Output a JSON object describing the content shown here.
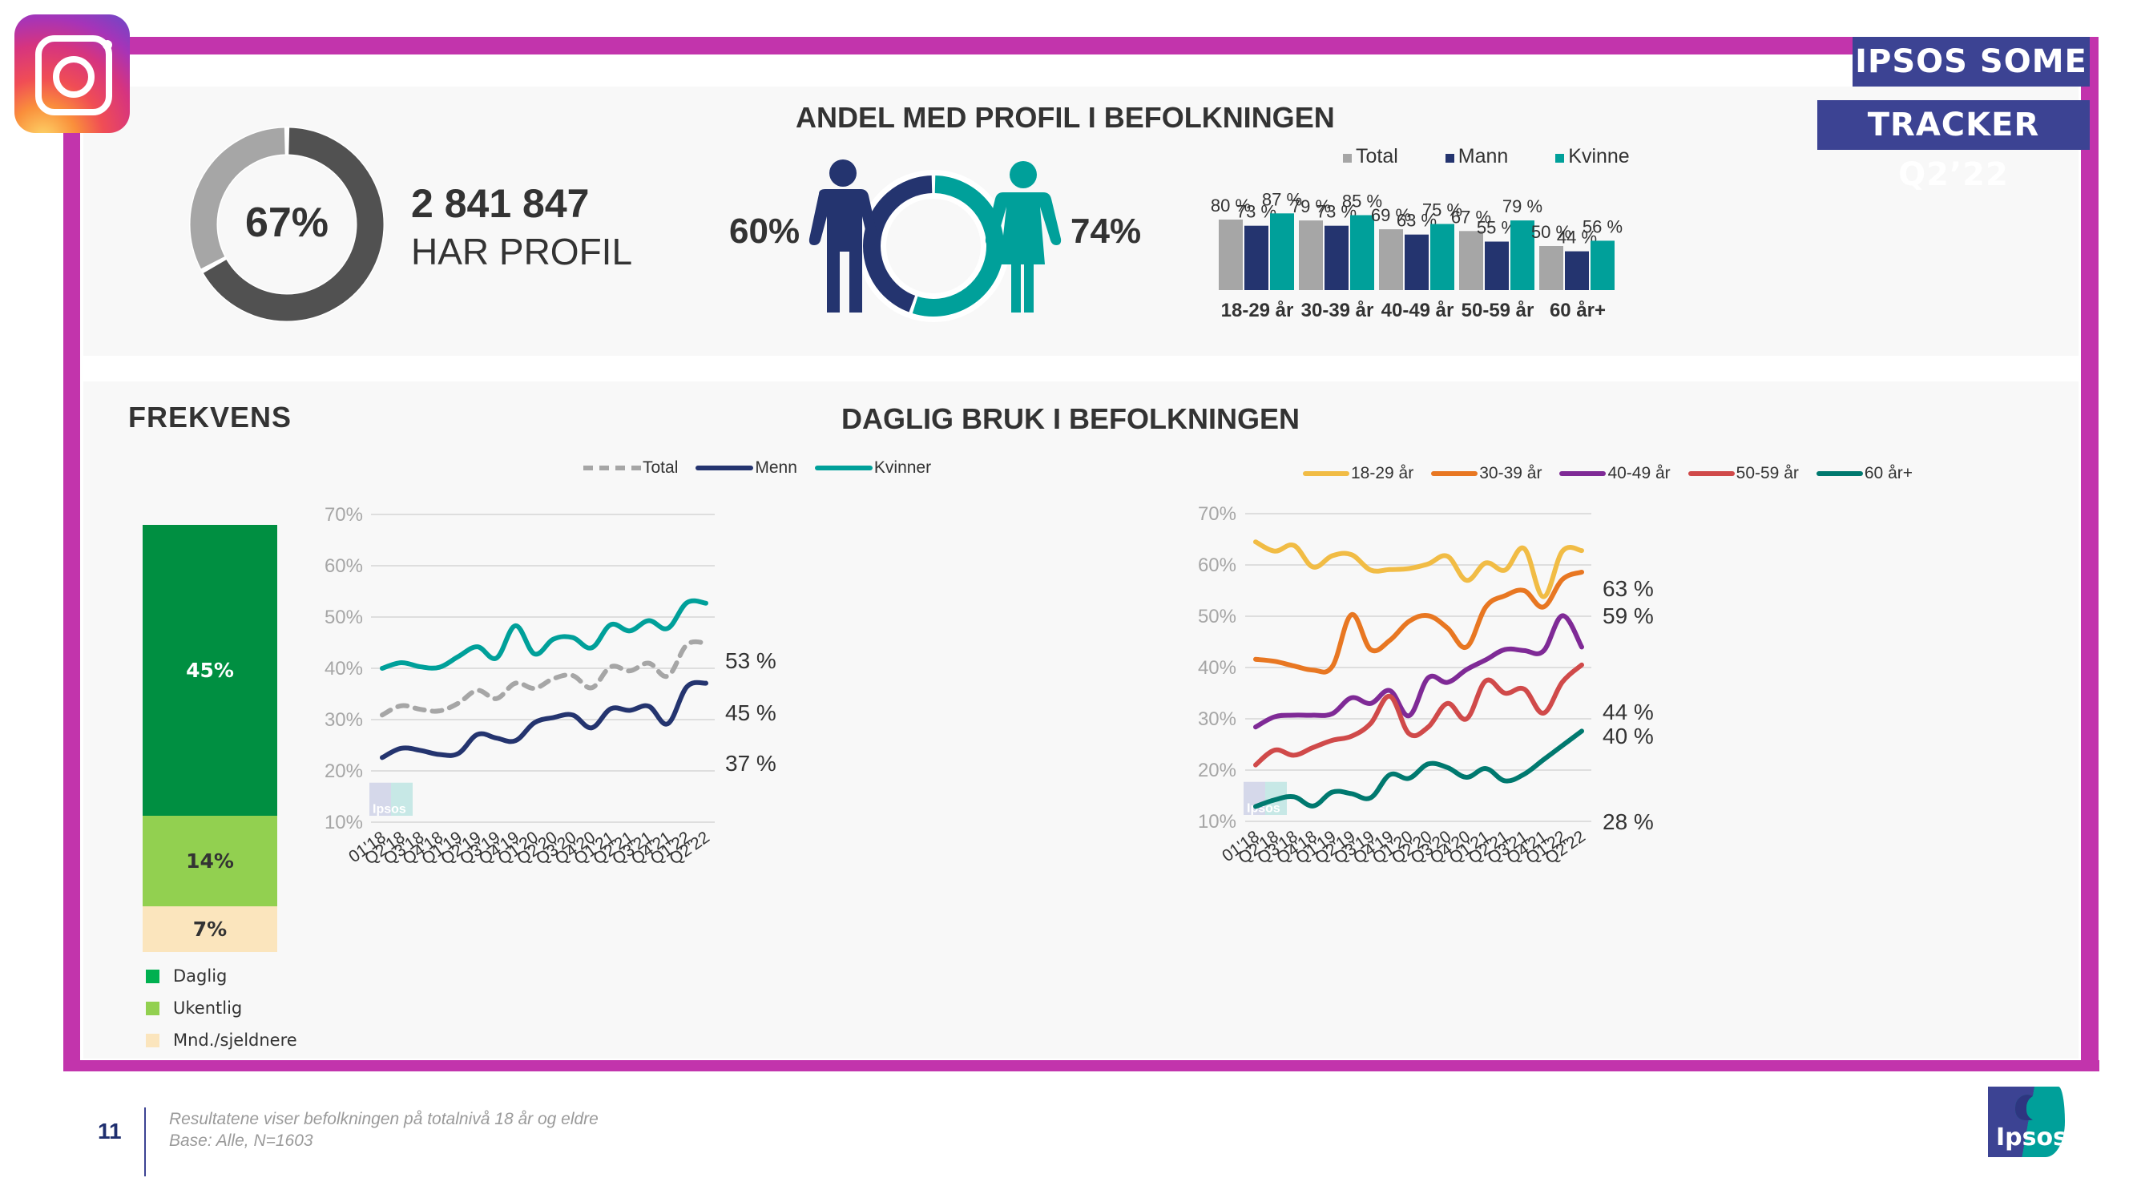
{
  "brand": {
    "badge_line1": "IPSOS SOME",
    "badge_line2": "TRACKER Q2’22",
    "platform_icon": "instagram-icon",
    "logo_text": "Ipsos",
    "colors": {
      "frame": "#c234ac",
      "badge": "#3c4393",
      "men": "#24346f",
      "women": "#00a09a",
      "total": "#a6a6a6"
    }
  },
  "profile": {
    "title": "ANDEL MED PROFIL I BEFOLKNINGEN",
    "donut_pct": 67,
    "donut_label": "67%",
    "count": "2 841 847",
    "count_label": "HAR PROFIL",
    "men_label": "60%",
    "women_label": "74%",
    "men_pct": 60,
    "women_pct": 74
  },
  "frekvens": {
    "title": "FREKVENS",
    "segments": [
      {
        "name": "Daglig",
        "value": 45,
        "label": "45%",
        "color": "#008f41",
        "text_color": "#ffffff"
      },
      {
        "name": "Ukentlig",
        "value": 14,
        "label": "14%",
        "color": "#92d050",
        "text_color": "#333333"
      },
      {
        "name": "Mnd./sjeldnere",
        "value": 7,
        "label": "7%",
        "color": "#fbe5bd",
        "text_color": "#333333"
      }
    ]
  },
  "daglig": {
    "title": "DAGLIG BRUK I BEFOLKNINGEN"
  },
  "footer": {
    "page_number": "11",
    "note_line1": "Resultatene viser befolkningen på totalnivå 18 år og eldre",
    "note_line2": "Base: Alle, N=1603"
  },
  "chart_data": [
    {
      "id": "age-gender-bars",
      "type": "bar",
      "title": "ANDEL MED PROFIL I BEFOLKNINGEN",
      "categories": [
        "18-29 år",
        "30-39 år",
        "40-49 år",
        "50-59 år",
        "60 år+"
      ],
      "series": [
        {
          "name": "Total",
          "color": "#a6a6a6",
          "values": [
            80,
            79,
            69,
            67,
            50
          ],
          "labels": [
            "80 %",
            "79 %",
            "69 %",
            "67 %",
            "50 %"
          ]
        },
        {
          "name": "Mann",
          "color": "#24346f",
          "values": [
            73,
            73,
            63,
            55,
            44
          ],
          "labels": [
            "73 %",
            "73 %",
            "63 %",
            "55 %",
            "44 %"
          ]
        },
        {
          "name": "Kvinne",
          "color": "#00a09a",
          "values": [
            87,
            85,
            75,
            79,
            56
          ],
          "labels": [
            "87 %",
            "85 %",
            "75 %",
            "79 %",
            "56 %"
          ]
        }
      ],
      "legend": "top",
      "ylim": [
        0,
        100
      ]
    },
    {
      "id": "frekvens-stack",
      "type": "bar",
      "title": "FREKVENS",
      "categories": [
        "Daglig",
        "Ukentlig",
        "Mnd./sjeldnere"
      ],
      "values": [
        45,
        14,
        7
      ],
      "stacked": true
    },
    {
      "id": "daily-gender",
      "type": "line",
      "title": "DAGLIG BRUK I BEFOLKNINGEN",
      "x": [
        "01'18",
        "Q2'18",
        "Q3'18",
        "Q4'18",
        "Q1'19",
        "Q2'19",
        "Q3'19",
        "Q4'19",
        "Q1'20",
        "Q2'20",
        "Q3'20",
        "Q4'20",
        "Q1'21",
        "Q2'21",
        "Q3'21",
        "Q4'21",
        "Q1'22",
        "Q2'22"
      ],
      "yticks": [
        "70%",
        "60%",
        "50%",
        "40%",
        "30%",
        "20%",
        "10%"
      ],
      "ylim": [
        10,
        70
      ],
      "grid": true,
      "legend": "top",
      "series": [
        {
          "name": "Total",
          "color": "#a6a6a6",
          "dashed": true,
          "end_label": "45 %",
          "values": [
            30.9,
            32.7,
            32.0,
            31.7,
            33.2,
            35.7,
            34.1,
            37.1,
            36.1,
            38.0,
            38.6,
            36.2,
            40.3,
            39.5,
            41.0,
            38.5,
            44.6,
            44.9
          ]
        },
        {
          "name": "Menn",
          "color": "#24346f",
          "dashed": false,
          "end_label": "37 %",
          "values": [
            22.6,
            24.4,
            24.0,
            23.2,
            23.4,
            27.1,
            26.4,
            25.9,
            29.4,
            30.4,
            30.9,
            28.4,
            32.1,
            31.8,
            32.6,
            29.2,
            36.4,
            37.1
          ]
        },
        {
          "name": "Kvinner",
          "color": "#00a09a",
          "dashed": false,
          "end_label": "53 %",
          "values": [
            40.0,
            41.1,
            40.3,
            40.2,
            42.3,
            44.2,
            42.0,
            48.3,
            42.8,
            45.7,
            46.0,
            44.0,
            48.5,
            47.3,
            49.3,
            47.8,
            52.8,
            52.7
          ]
        }
      ]
    },
    {
      "id": "daily-age",
      "type": "line",
      "title": "DAGLIG BRUK I BEFOLKNINGEN",
      "x": [
        "01'18",
        "Q2'18",
        "Q3'18",
        "Q4'18",
        "Q1'19",
        "Q2'19",
        "Q3'19",
        "Q4'19",
        "Q1'20",
        "Q2'20",
        "Q3'20",
        "Q4'20",
        "Q1'21",
        "Q2'21",
        "Q3'21",
        "Q4'21",
        "Q1'22",
        "Q2'22"
      ],
      "yticks": [
        "70%",
        "60%",
        "50%",
        "40%",
        "30%",
        "20%",
        "10%"
      ],
      "ylim": [
        10,
        70
      ],
      "grid": true,
      "legend": "top",
      "series": [
        {
          "name": "18-29 år",
          "color": "#f1bc45",
          "end_label": "63 %",
          "values": [
            64.5,
            62.7,
            63.8,
            59.6,
            61.8,
            62.0,
            59.0,
            59.1,
            59.3,
            60.2,
            61.7,
            57.0,
            60.4,
            59.0,
            63.2,
            53.8,
            62.7,
            62.8
          ]
        },
        {
          "name": "30-39 år",
          "color": "#e87722",
          "end_label": "59 %",
          "values": [
            41.6,
            41.2,
            40.3,
            39.5,
            40.2,
            50.3,
            43.5,
            45.3,
            49.0,
            50.1,
            47.7,
            44.0,
            51.8,
            54.0,
            55.0,
            51.8,
            57.2,
            58.6
          ]
        },
        {
          "name": "40-49 år",
          "color": "#7f2a96",
          "end_label": "44 %",
          "values": [
            28.4,
            30.4,
            30.7,
            30.7,
            31.0,
            34.1,
            33.0,
            35.5,
            30.6,
            38.0,
            37.1,
            39.6,
            41.5,
            43.5,
            43.3,
            43.2,
            50.1,
            44.0
          ]
        },
        {
          "name": "50-59 år",
          "color": "#d04a4a",
          "end_label": "40 %",
          "values": [
            21.0,
            23.9,
            22.9,
            24.4,
            25.8,
            26.6,
            29.1,
            34.4,
            27.1,
            28.4,
            33.0,
            30.0,
            37.4,
            35.0,
            35.8,
            31.1,
            37.2,
            40.5
          ]
        },
        {
          "name": "60 år+",
          "color": "#00796f",
          "end_label": "28 %",
          "values": [
            12.9,
            14.2,
            14.8,
            13.0,
            15.7,
            15.4,
            14.6,
            19.1,
            18.4,
            21.2,
            20.5,
            18.6,
            20.3,
            17.9,
            19.2,
            22.0,
            24.8,
            27.6
          ]
        }
      ]
    }
  ]
}
